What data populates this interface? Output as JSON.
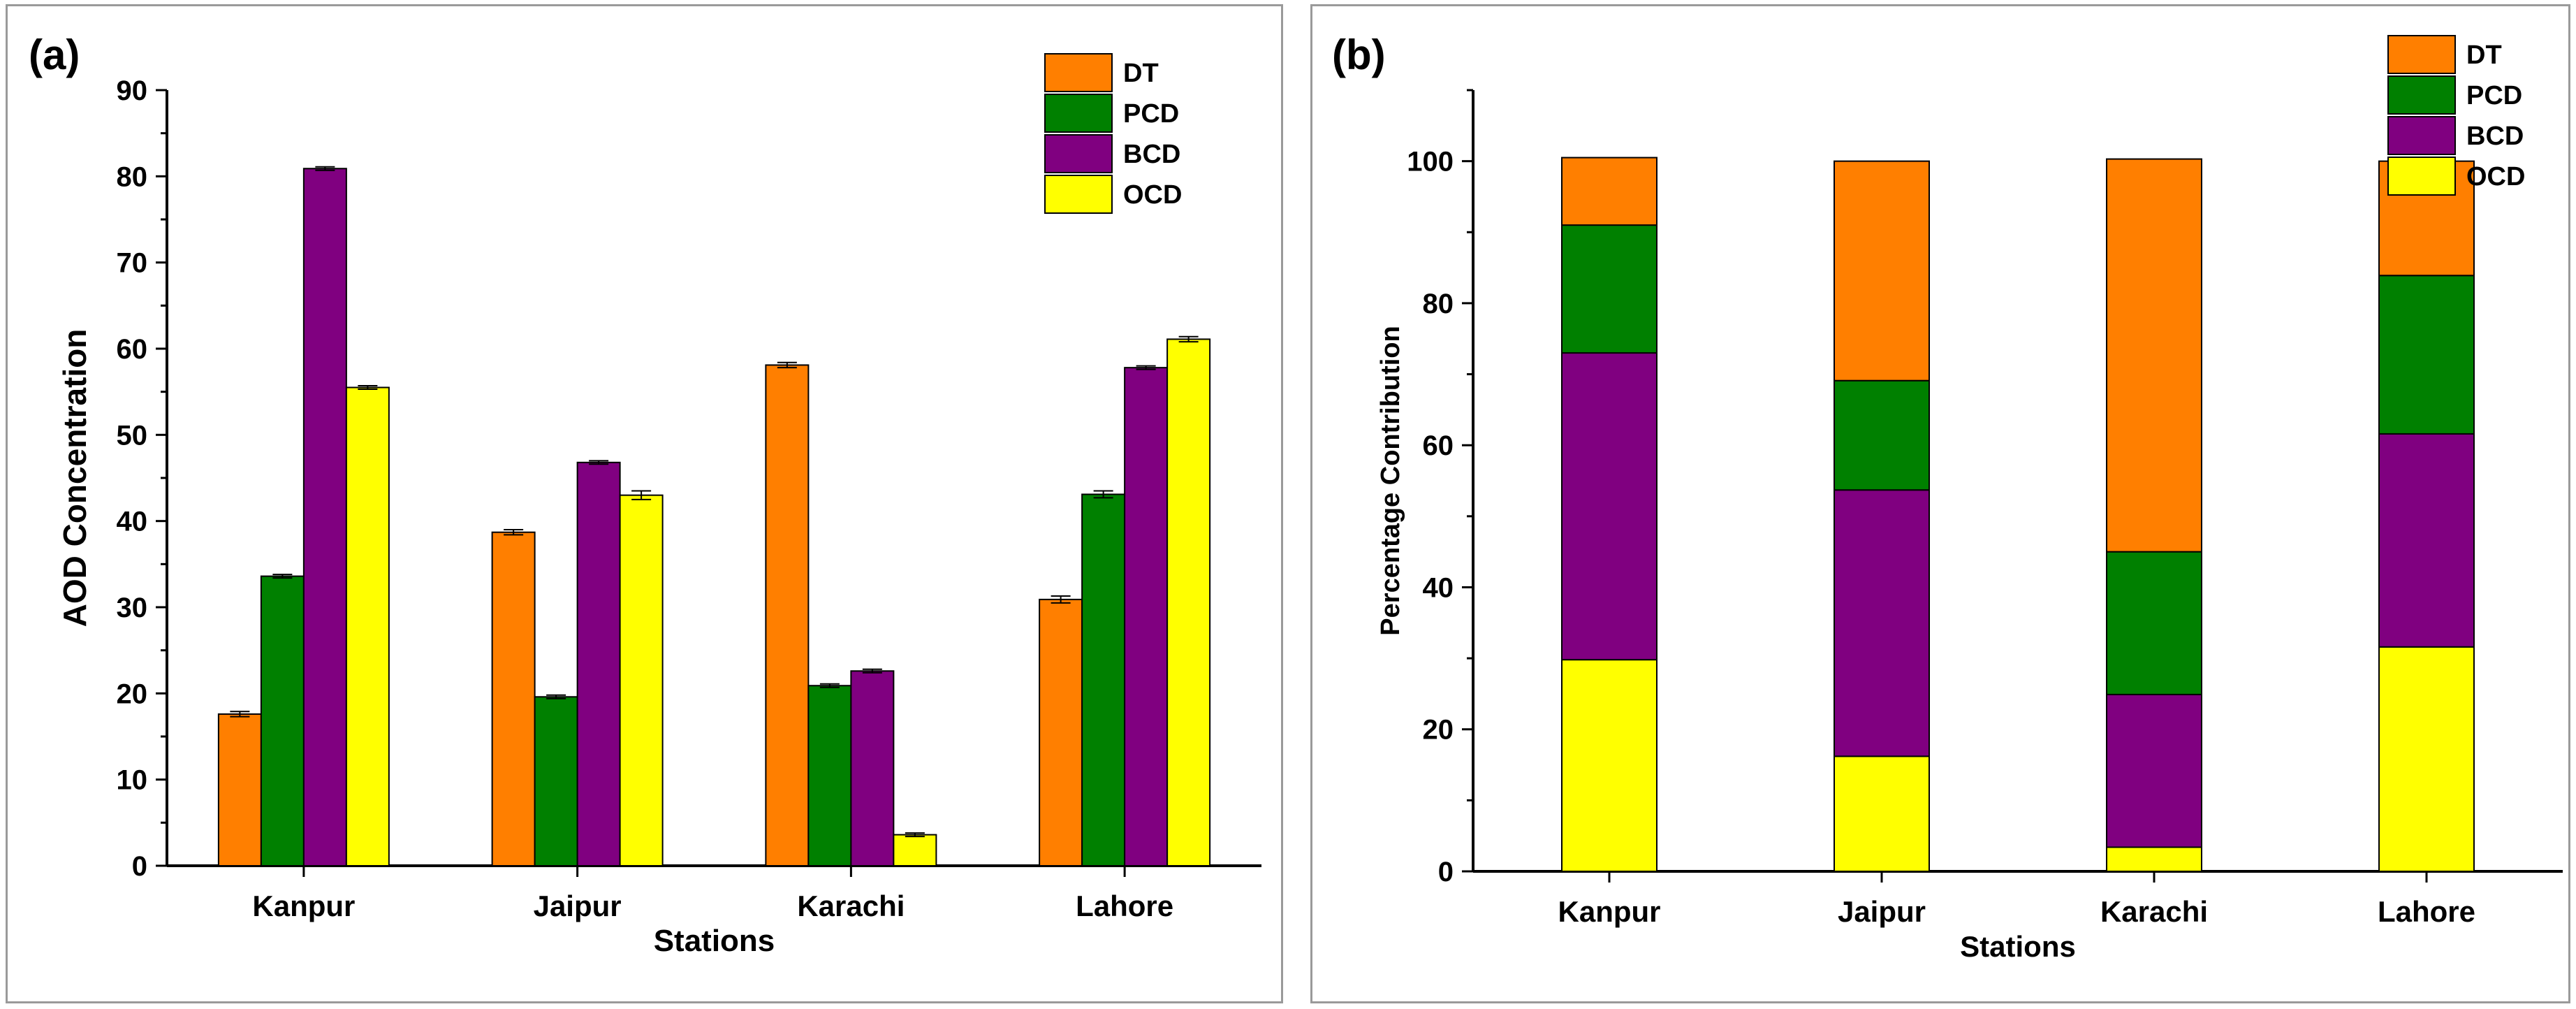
{
  "figure": {
    "panels": [
      {
        "label": "(a)"
      },
      {
        "label": "(b)"
      }
    ]
  },
  "colors": {
    "DT": "#ff7f00",
    "PCD": "#008000",
    "BCD": "#800080",
    "OCD": "#ffff00"
  },
  "chart_data": [
    {
      "type": "bar",
      "panel_label": "(a)",
      "title": "",
      "xlabel": "Stations",
      "ylabel": "AOD Concentration",
      "categories": [
        "Kanpur",
        "Jaipur",
        "Karachi",
        "Lahore"
      ],
      "ylim": [
        0,
        90
      ],
      "yticks": [
        "0",
        "10",
        "20",
        "30",
        "40",
        "50",
        "60",
        "70",
        "80",
        "90"
      ],
      "legend_position": "top-right",
      "error_bars": true,
      "series": [
        {
          "name": "DT",
          "values": [
            17.6,
            38.7,
            58.1,
            30.9
          ],
          "errors": [
            0.3,
            0.3,
            0.3,
            0.4
          ]
        },
        {
          "name": "PCD",
          "values": [
            33.6,
            19.6,
            20.9,
            43.1
          ],
          "errors": [
            0.2,
            0.2,
            0.2,
            0.4
          ]
        },
        {
          "name": "BCD",
          "values": [
            80.9,
            46.8,
            22.6,
            57.8
          ],
          "errors": [
            0.2,
            0.2,
            0.2,
            0.2
          ]
        },
        {
          "name": "OCD",
          "values": [
            55.5,
            43.0,
            3.6,
            61.1
          ],
          "errors": [
            0.2,
            0.5,
            0.2,
            0.3
          ]
        }
      ]
    },
    {
      "type": "bar",
      "stacked": true,
      "panel_label": "(b)",
      "title": "",
      "xlabel": "Stations",
      "ylabel": "Percentage Contribution",
      "categories": [
        "Kanpur",
        "Jaipur",
        "Karachi",
        "Lahore"
      ],
      "ylim": [
        0,
        110
      ],
      "yticks": [
        "0",
        "20",
        "40",
        "60",
        "80",
        "100"
      ],
      "legend_position": "top-right",
      "series": [
        {
          "name": "OCD",
          "values": [
            29.8,
            16.2,
            3.4,
            31.6
          ]
        },
        {
          "name": "BCD",
          "values": [
            43.2,
            37.5,
            21.5,
            30.0
          ]
        },
        {
          "name": "PCD",
          "values": [
            18.0,
            15.4,
            20.1,
            22.3
          ]
        },
        {
          "name": "DT",
          "values": [
            9.5,
            30.9,
            55.3,
            16.1
          ]
        }
      ],
      "legend_order": [
        "DT",
        "PCD",
        "BCD",
        "OCD"
      ]
    }
  ]
}
